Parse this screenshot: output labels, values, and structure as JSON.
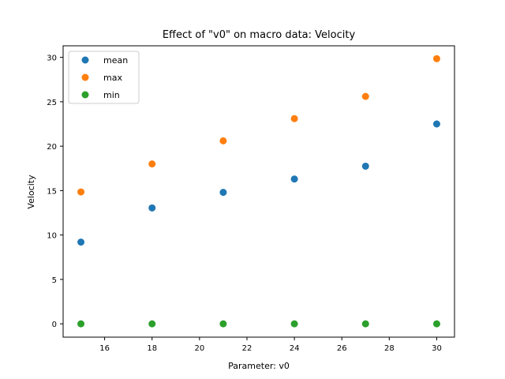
{
  "chart_data": {
    "type": "scatter",
    "title": "Effect of \"v0\" on macro data: Velocity",
    "xlabel": "Parameter: v0",
    "ylabel": "Velocity",
    "xlim": [
      14.25,
      30.75
    ],
    "ylim": [
      -1.5,
      31.3
    ],
    "xticks": [
      16,
      18,
      20,
      22,
      24,
      26,
      28,
      30
    ],
    "yticks": [
      0,
      5,
      10,
      15,
      20,
      25,
      30
    ],
    "legend_position": "top-left",
    "grid": false,
    "x": [
      15,
      18,
      21,
      24,
      27,
      30
    ],
    "series": [
      {
        "name": "mean",
        "color": "#1f77b4",
        "values": [
          9.2,
          13.05,
          14.8,
          16.3,
          17.75,
          22.5
        ]
      },
      {
        "name": "max",
        "color": "#ff7f0e",
        "values": [
          14.85,
          18.0,
          20.6,
          23.1,
          25.6,
          29.85
        ]
      },
      {
        "name": "min",
        "color": "#2ca02c",
        "values": [
          0,
          0,
          0,
          0,
          0,
          0
        ]
      }
    ]
  }
}
